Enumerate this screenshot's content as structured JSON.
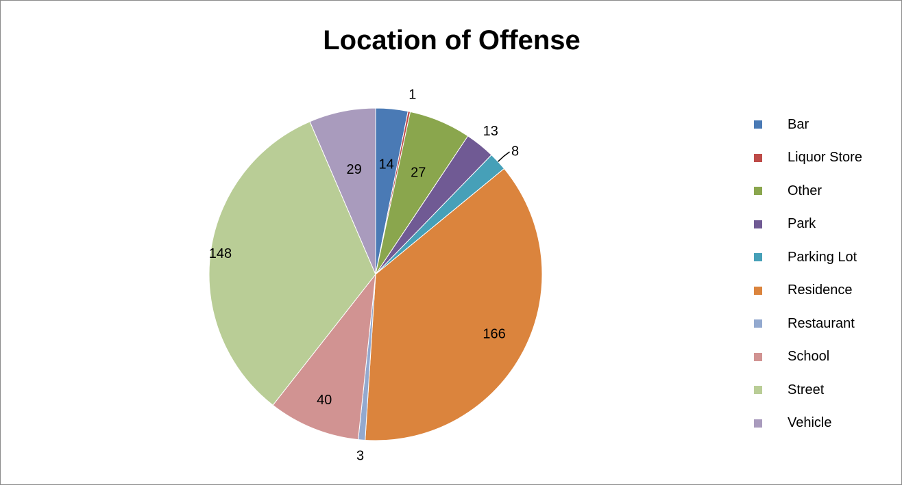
{
  "chart_data": {
    "type": "pie",
    "title": "Location of Offense",
    "categories": [
      "Bar",
      "Liquor Store",
      "Other",
      "Park",
      "Parking Lot",
      "Residence",
      "Restaurant",
      "School",
      "Street",
      "Vehicle"
    ],
    "values": [
      14,
      1,
      27,
      13,
      8,
      166,
      3,
      40,
      148,
      29
    ],
    "colors": [
      "#4a7ab5",
      "#be4b48",
      "#8aa64d",
      "#705a94",
      "#46a0b8",
      "#db843d",
      "#93a9cf",
      "#d19392",
      "#b9cd96",
      "#a99bbd"
    ],
    "data_labels": [
      "14",
      "1",
      "27",
      "13",
      "8",
      "166",
      "3",
      "40",
      "148",
      "29"
    ],
    "legend_position": "right",
    "start_angle": "top",
    "direction": "clockwise"
  }
}
